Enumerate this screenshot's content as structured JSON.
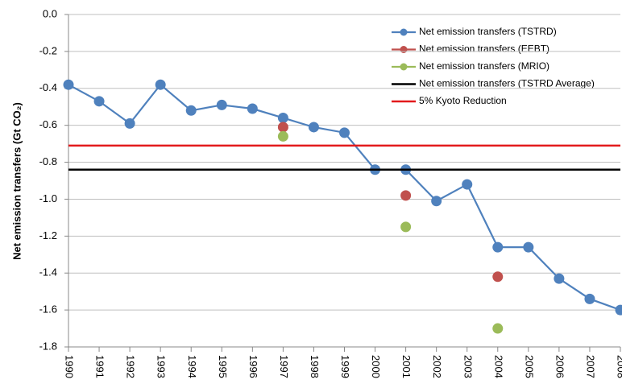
{
  "chart_data": {
    "type": "line",
    "y_axis_label": "Net emission transfers (Gt CO₂)",
    "categories": [
      "1990",
      "1991",
      "1992",
      "1993",
      "1994",
      "1995",
      "1996",
      "1997",
      "1998",
      "1999",
      "2000",
      "2001",
      "2002",
      "2003",
      "2004",
      "2005",
      "2006",
      "2007",
      "2008"
    ],
    "series": [
      {
        "name": "Net emission transfers (TSTRD)",
        "color": "#4f81bd",
        "line": true,
        "values": [
          -0.38,
          -0.47,
          -0.59,
          -0.38,
          -0.52,
          -0.49,
          -0.51,
          -0.56,
          -0.61,
          -0.64,
          -0.84,
          -0.84,
          -1.01,
          -0.92,
          -1.26,
          -1.26,
          -1.43,
          -1.54,
          -1.6
        ]
      },
      {
        "name": "Net emission transfers (EEBT)",
        "color": "#c0504d",
        "line": false,
        "values": [
          null,
          null,
          null,
          null,
          null,
          null,
          null,
          -0.61,
          null,
          null,
          null,
          -0.98,
          null,
          null,
          -1.42,
          null,
          null,
          null,
          null
        ]
      },
      {
        "name": "Net emission transfers (MRIO)",
        "color": "#9bbb59",
        "line": false,
        "values": [
          null,
          null,
          null,
          null,
          null,
          null,
          null,
          -0.66,
          null,
          null,
          null,
          -1.15,
          null,
          null,
          -1.7,
          null,
          null,
          null,
          null
        ]
      },
      {
        "name": "Net emission transfers (TSTRD Average)",
        "color": "#000000",
        "value": -0.84
      },
      {
        "name": "5% Kyoto  Reduction",
        "color": "#e31a1c",
        "value": -0.71
      }
    ],
    "ylim": [
      -1.8,
      0
    ],
    "yticks": [
      {
        "value": 0,
        "label": "0.0"
      },
      -0.2,
      -0.4,
      -0.6,
      -0.8,
      {
        "value": -1,
        "label": "-1.0"
      },
      -1.2,
      -1.4,
      -1.6,
      -1.8
    ],
    "grid": true,
    "legend": "top-right"
  }
}
